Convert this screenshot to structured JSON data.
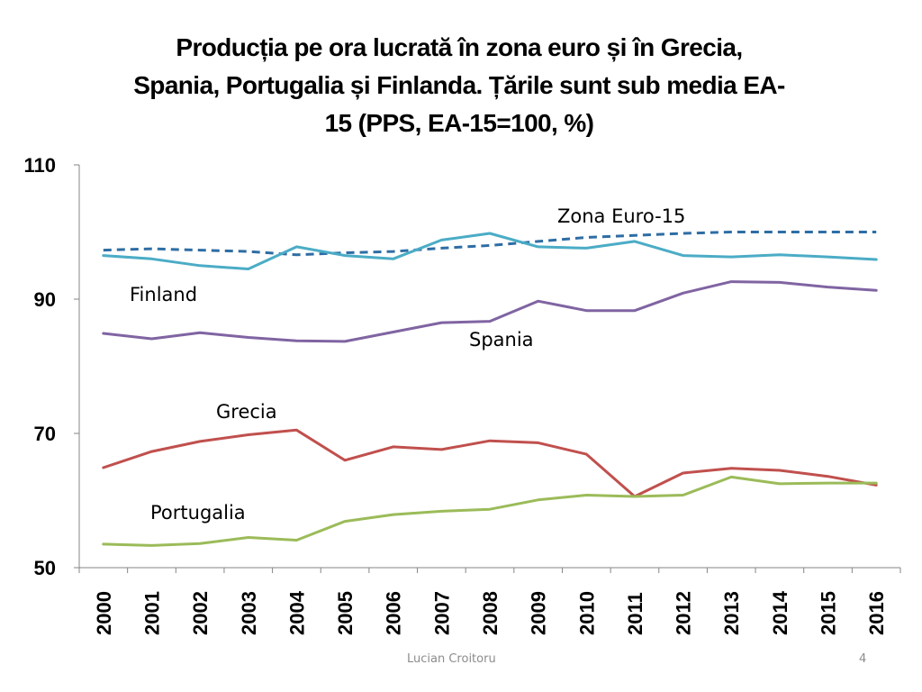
{
  "slide": {
    "title_lines": [
      "Producția pe ora lucrată în zona euro și în Grecia,",
      "Spania, Portugalia și Finlanda. Țările sunt sub media EA-",
      "15  (PPS, EA-15=100, %)"
    ],
    "footer_author": "Lucian Croitoru",
    "page_number": "4"
  },
  "chart_data": {
    "type": "line",
    "title": "Producția pe ora lucrată în zona euro și în Grecia, Spania, Portugalia și Finlanda. Țările sunt sub media EA-15 (PPS, EA-15=100, %)",
    "xlabel": "",
    "ylabel": "",
    "ylim": [
      50,
      110
    ],
    "yticks": [
      50,
      70,
      90,
      110
    ],
    "categories": [
      "2000",
      "2001",
      "2002",
      "2003",
      "2004",
      "2005",
      "2006",
      "2007",
      "2008",
      "2009",
      "2010",
      "2011",
      "2012",
      "2013",
      "2014",
      "2015",
      "2016"
    ],
    "series": [
      {
        "name": "Zona Euro-15",
        "color": "#2E6DA4",
        "dashed": true,
        "values": [
          97.3,
          97.5,
          97.3,
          97.1,
          96.6,
          96.9,
          97.1,
          97.6,
          98.0,
          98.6,
          99.2,
          99.5,
          99.8,
          100.0,
          100.0,
          100.0,
          100.0
        ]
      },
      {
        "name": "Finland",
        "color": "#4BACC6",
        "dashed": false,
        "values": [
          96.5,
          96.0,
          95.0,
          94.5,
          97.8,
          96.5,
          96.0,
          98.8,
          99.8,
          97.8,
          97.6,
          98.6,
          96.5,
          96.3,
          96.6,
          96.3,
          95.9
        ]
      },
      {
        "name": "Spania",
        "color": "#8064A2",
        "dashed": false,
        "values": [
          84.9,
          84.1,
          85.0,
          84.3,
          83.8,
          83.7,
          85.1,
          86.5,
          86.7,
          89.7,
          88.3,
          88.3,
          90.9,
          92.6,
          92.5,
          91.8,
          91.3
        ]
      },
      {
        "name": "Grecia",
        "color": "#C0504D",
        "dashed": false,
        "values": [
          64.9,
          67.3,
          68.8,
          69.8,
          70.5,
          66.0,
          68.0,
          67.6,
          68.9,
          68.6,
          66.9,
          60.6,
          64.1,
          64.8,
          64.5,
          63.6,
          62.3
        ]
      },
      {
        "name": "Portugalia",
        "color": "#9BBB59",
        "dashed": false,
        "values": [
          53.5,
          53.3,
          53.6,
          54.5,
          54.1,
          56.9,
          57.9,
          58.4,
          58.7,
          60.1,
          60.8,
          60.6,
          60.8,
          63.5,
          62.5,
          62.6,
          62.6
        ]
      }
    ],
    "annotations": [
      {
        "text": "Zona Euro-15",
        "series": "Zona Euro-15"
      },
      {
        "text": "Finland",
        "series": "Finland"
      },
      {
        "text": "Spania",
        "series": "Spania"
      },
      {
        "text": "Grecia",
        "series": "Grecia"
      },
      {
        "text": "Portugalia",
        "series": "Portugalia"
      }
    ],
    "legend": "none (inline labels)",
    "grid": false
  }
}
